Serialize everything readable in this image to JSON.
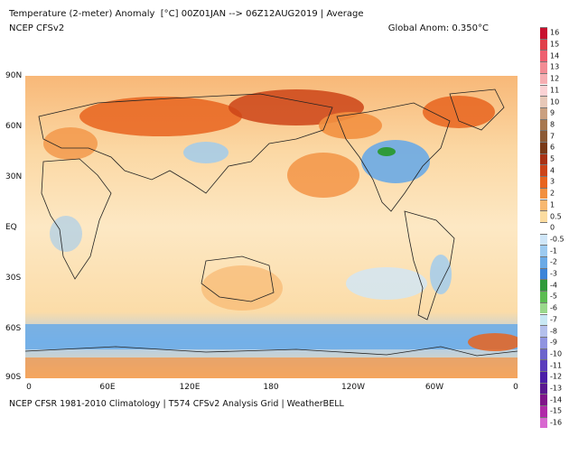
{
  "header": {
    "title": "Temperature (2-meter) Anomaly  [°C] 00Z01JAN --> 06Z12AUG2019 | Average",
    "model": "NCEP CFSv2",
    "global_anomaly": "Global Anom: 0.350°C"
  },
  "footer": "NCEP CFSR 1981-2010 Climatology | T574 CFSv2 Analysis Grid | WeatherBELL",
  "axes": {
    "lat_labels": [
      "90N",
      "60N",
      "30N",
      "EQ",
      "30S",
      "60S",
      "90S"
    ],
    "lon_labels": [
      "0",
      "60E",
      "120E",
      "180",
      "120W",
      "60W",
      "0"
    ]
  },
  "colorbar": {
    "labels": [
      "16",
      "15",
      "14",
      "13",
      "12",
      "11",
      "10",
      "9",
      "8",
      "7",
      "6",
      "5",
      "4",
      "3",
      "2",
      "1",
      "0.5",
      "0",
      "-0.5",
      "-1",
      "-2",
      "-3",
      "-4",
      "-5",
      "-6",
      "-7",
      "-8",
      "-9",
      "-10",
      "-11",
      "-12",
      "-13",
      "-14",
      "-15",
      "-16"
    ],
    "colors": [
      "#c8102e",
      "#e0404a",
      "#ee6070",
      "#f28c94",
      "#f6aeb2",
      "#fbd2d4",
      "#e8c8b8",
      "#caa080",
      "#a87850",
      "#8c5a36",
      "#7a3a18",
      "#a83214",
      "#cc4418",
      "#e8641e",
      "#f29040",
      "#f8b870",
      "#fbdca0",
      "#ffffff",
      "#cfe6f8",
      "#9ccaf0",
      "#6aaae6",
      "#3c84d8",
      "#2e9a3a",
      "#5cbc52",
      "#9ad88c",
      "#c8e8f4",
      "#b4c0ec",
      "#9094e0",
      "#6c64cc",
      "#5a3cbc",
      "#4c1ea8",
      "#5a1890",
      "#80148a",
      "#b02aa8",
      "#d868d0"
    ]
  }
}
